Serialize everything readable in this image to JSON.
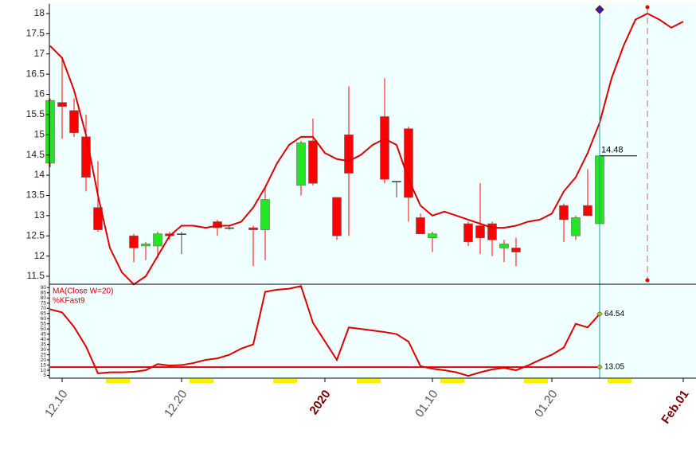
{
  "chart_data": [
    {
      "type": "candlestick",
      "categories": [
        null,
        "12.10",
        null,
        null,
        null,
        null,
        null,
        null,
        null,
        null,
        null,
        "12.20",
        null,
        null,
        null,
        null,
        null,
        null,
        null,
        null,
        null,
        null,
        null,
        "2020",
        null,
        null,
        null,
        null,
        null,
        null,
        null,
        null,
        "01.10",
        null,
        null,
        null,
        null,
        null,
        null,
        null,
        null,
        null,
        "01.20",
        null,
        null,
        null,
        null,
        null,
        null,
        null,
        null,
        null,
        null,
        "Feb.01"
      ],
      "open": [
        14.3,
        15.8,
        15.6,
        14.95,
        13.2,
        null,
        null,
        12.5,
        12.25,
        12.25,
        12.55,
        12.55,
        null,
        null,
        12.85,
        12.7,
        null,
        12.7,
        12.65,
        null,
        null,
        13.75,
        14.85,
        null,
        13.45,
        15.0,
        null,
        null,
        15.45,
        13.85,
        15.15,
        12.95,
        12.45,
        null,
        null,
        12.8,
        12.75,
        12.8,
        12.2,
        12.2,
        null,
        null,
        null,
        13.25,
        12.5,
        13.25,
        12.8,
        null,
        null,
        null,
        null,
        null,
        null,
        null
      ],
      "high": [
        15.9,
        16.9,
        15.9,
        15.5,
        14.35,
        null,
        null,
        12.55,
        12.35,
        12.6,
        12.6,
        12.6,
        null,
        null,
        12.9,
        12.75,
        null,
        12.75,
        13.7,
        null,
        null,
        14.85,
        15.4,
        null,
        13.45,
        16.2,
        null,
        null,
        16.4,
        13.85,
        15.2,
        13.05,
        12.6,
        null,
        null,
        12.85,
        13.8,
        12.85,
        12.4,
        12.45,
        null,
        null,
        null,
        13.3,
        13.0,
        14.15,
        15.0,
        null,
        null,
        null,
        null,
        null,
        null,
        null
      ],
      "low": [
        14.2,
        14.9,
        14.95,
        13.6,
        12.6,
        null,
        null,
        11.85,
        11.9,
        11.95,
        12.4,
        12.05,
        null,
        null,
        12.5,
        12.65,
        null,
        11.75,
        11.9,
        null,
        null,
        13.5,
        13.75,
        null,
        12.4,
        12.5,
        null,
        null,
        13.8,
        13.45,
        12.85,
        12.55,
        12.1,
        null,
        null,
        12.25,
        12.05,
        12.0,
        11.85,
        11.75,
        null,
        null,
        null,
        12.35,
        12.4,
        13.0,
        12.8,
        null,
        null,
        null,
        null,
        null,
        null,
        null
      ],
      "close": [
        15.85,
        15.7,
        15.05,
        13.95,
        12.65,
        null,
        null,
        12.2,
        12.3,
        12.55,
        12.5,
        12.55,
        null,
        null,
        12.7,
        12.7,
        null,
        12.65,
        13.4,
        null,
        null,
        14.8,
        13.8,
        null,
        12.5,
        14.05,
        null,
        null,
        13.9,
        13.85,
        13.45,
        12.55,
        12.55,
        null,
        null,
        12.35,
        12.45,
        12.4,
        12.3,
        12.1,
        null,
        null,
        null,
        12.9,
        12.95,
        13.0,
        14.48,
        null,
        null,
        null,
        null,
        null,
        null,
        null
      ],
      "up_color": "#22e622",
      "down_color": "#ff0000",
      "flat_color": "#444444",
      "series": [
        {
          "color": "#dd0000",
          "values": [
            17.2,
            16.9,
            16.1,
            15.0,
            13.5,
            12.2,
            11.6,
            11.3,
            11.5,
            12.0,
            12.5,
            12.75,
            12.75,
            12.7,
            12.75,
            12.75,
            12.85,
            13.2,
            13.7,
            14.3,
            14.75,
            14.95,
            14.95,
            14.55,
            14.4,
            14.35,
            14.5,
            14.75,
            14.9,
            14.75,
            13.9,
            13.25,
            13.0,
            13.1,
            13.0,
            12.9,
            12.8,
            12.7,
            12.7,
            12.75,
            12.85,
            12.9,
            13.05,
            13.6,
            13.95,
            14.55,
            15.3,
            16.4,
            17.2,
            17.85,
            18.0,
            17.85,
            17.65,
            17.8
          ]
        }
      ],
      "ylim": [
        11.5,
        18
      ],
      "yticks": [
        11.5,
        12,
        12.5,
        13,
        13.5,
        14,
        14.5,
        15,
        15.5,
        16,
        16.5,
        17,
        17.5,
        18
      ]
    },
    {
      "type": "line",
      "series": [
        {
          "name": "MA(Close W=20)",
          "color": "#dd0000",
          "values": [
            13.05,
            13.05,
            13.05,
            13.05,
            13.05,
            13.05,
            13.05,
            13.05,
            13.05,
            13.05,
            13.05,
            13.05,
            13.05,
            13.05,
            13.05,
            13.05,
            13.05,
            13.05,
            13.05,
            13.05,
            13.05,
            13.05,
            13.05,
            13.05,
            13.05,
            13.05,
            13.05,
            13.05,
            13.05,
            13.05,
            13.05,
            13.05,
            13.05,
            13.05,
            13.05,
            13.05,
            13.05,
            13.05,
            13.05,
            13.05,
            13.05,
            13.05,
            13.05,
            13.05,
            13.05,
            13.05,
            13.05,
            null,
            null,
            null,
            null,
            null,
            null,
            null
          ]
        },
        {
          "name": "%KFast9",
          "color": "#dd0000",
          "values": [
            69,
            66,
            52,
            33,
            7,
            8,
            8,
            8.5,
            10,
            16,
            14.6,
            15,
            17,
            20,
            21.5,
            25,
            31,
            35,
            86,
            88,
            89,
            91.5,
            56,
            38,
            20,
            51.5,
            50,
            48.5,
            47,
            45,
            37.7,
            14,
            11.5,
            10,
            8,
            4.6,
            8,
            10.8,
            12.3,
            10,
            14.6,
            20,
            25,
            32,
            55,
            51.5,
            64.54,
            null,
            null,
            null,
            null,
            null,
            null,
            null
          ]
        }
      ],
      "ylim": [
        0,
        91
      ],
      "yticks": [
        5,
        10,
        15,
        20,
        25,
        30,
        35,
        40,
        45,
        50,
        55,
        60,
        65,
        70,
        75,
        80,
        85,
        90
      ]
    }
  ]
}
